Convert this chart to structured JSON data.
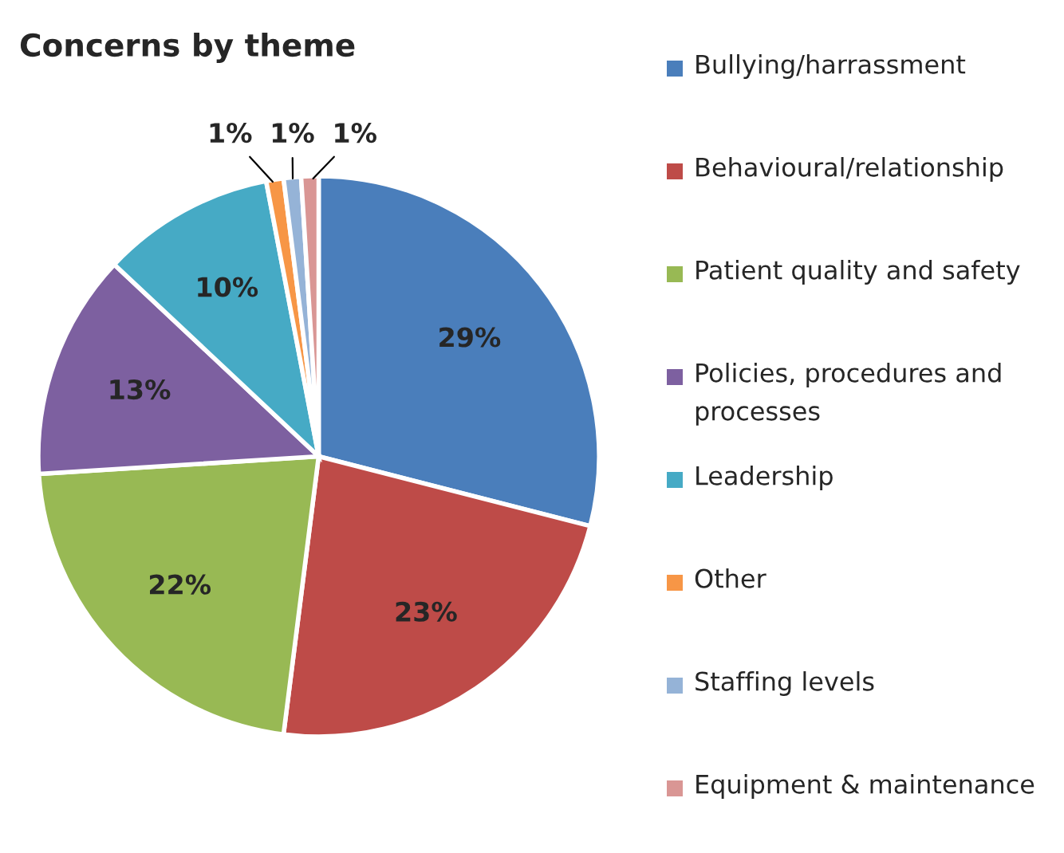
{
  "chart_data": {
    "type": "pie",
    "title": "Concerns by theme",
    "categories": [
      "Bullying/harrassment",
      "Behavioural/relationship",
      "Patient quality and safety",
      "Policies, procedures and processes",
      "Leadership",
      "Other",
      "Staffing levels",
      "Equipment & maintenance"
    ],
    "values": [
      29,
      23,
      22,
      13,
      10,
      1,
      1,
      1
    ],
    "value_labels": [
      "29%",
      "23%",
      "22%",
      "13%",
      "10%",
      "1%",
      "1%",
      "1%"
    ],
    "colors": [
      "#4a7ebb",
      "#be4b48",
      "#98b954",
      "#7d60a0",
      "#46aac5",
      "#f79646",
      "#95b3d7",
      "#d99694"
    ],
    "legend": "right"
  }
}
